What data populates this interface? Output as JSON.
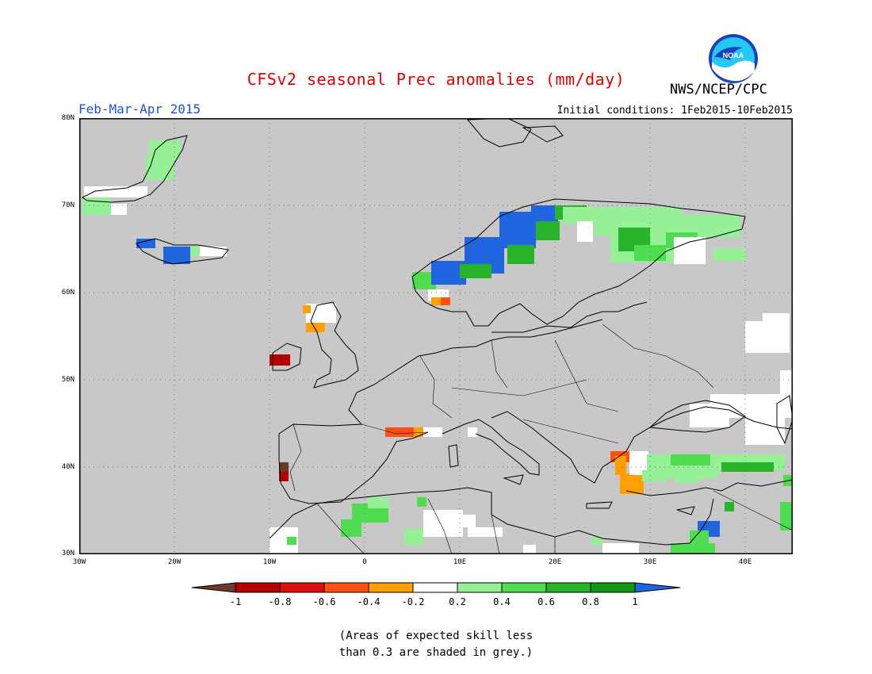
{
  "title": "CFSv2 seasonal Prec anomalies (mm/day)",
  "season": "Feb-Mar-Apr 2015",
  "initial_conditions": "Initial conditions: 1Feb2015-10Feb2015",
  "agency": "NWS/NCEP/CPC",
  "logo_text": "NOAA",
  "lat_labels": [
    "80N",
    "70N",
    "60N",
    "50N",
    "40N",
    "30N"
  ],
  "lon_labels": [
    "30W",
    "20W",
    "10W",
    "0",
    "10E",
    "20E",
    "30E",
    "40E"
  ],
  "colorbar": {
    "labels": [
      "-1",
      "-0.8",
      "-0.6",
      "-0.4",
      "-0.2",
      "0.2",
      "0.4",
      "0.6",
      "0.8",
      "1"
    ],
    "colors": [
      "#6b3a2a",
      "#b40000",
      "#e01010",
      "#ff5014",
      "#ffa000",
      "#ffffff",
      "#96f096",
      "#50dc50",
      "#28b428",
      "#149614",
      "#2064e0"
    ]
  },
  "note": [
    "(Areas of expected skill less",
    "than 0.3 are shaded in grey.)"
  ],
  "map": {
    "background": "#c8c8c8",
    "extent": {
      "lon": [
        -30,
        45
      ],
      "lat": [
        30,
        80
      ]
    }
  }
}
